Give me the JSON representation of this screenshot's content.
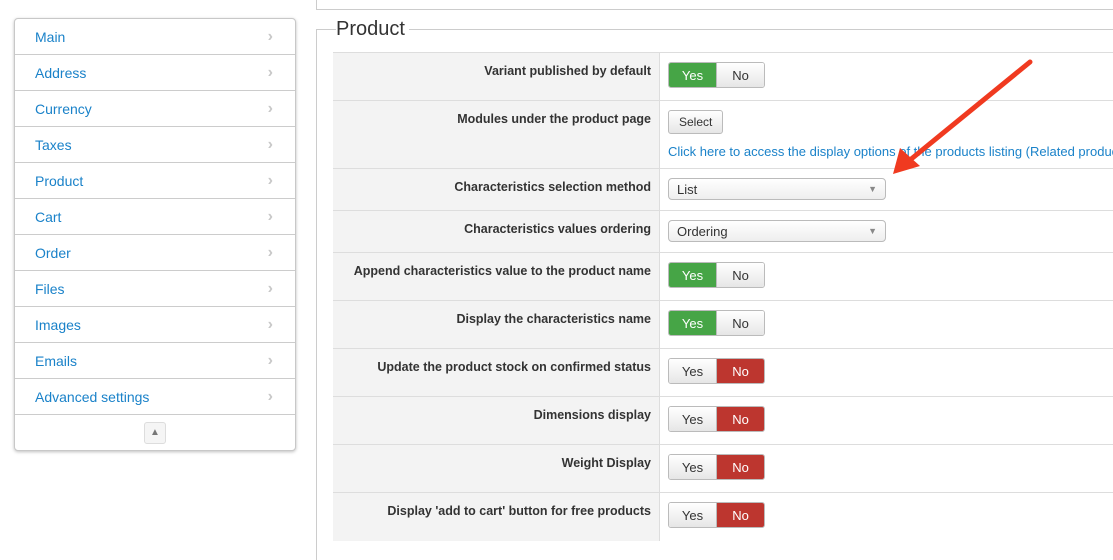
{
  "sidebar": {
    "items": [
      {
        "label": "Main"
      },
      {
        "label": "Address"
      },
      {
        "label": "Currency"
      },
      {
        "label": "Taxes"
      },
      {
        "label": "Product"
      },
      {
        "label": "Cart"
      },
      {
        "label": "Order"
      },
      {
        "label": "Files"
      },
      {
        "label": "Images"
      },
      {
        "label": "Emails"
      },
      {
        "label": "Advanced settings"
      }
    ]
  },
  "section": {
    "title": "Product"
  },
  "toggle": {
    "yes": "Yes",
    "no": "No"
  },
  "rows": [
    {
      "label": "Variant published by default",
      "value": "Yes"
    },
    {
      "label": "Modules under the product page",
      "button": "Select",
      "link": "Click here to access the display options of the products listing (Related products)"
    },
    {
      "label": "Characteristics selection method",
      "select": "List"
    },
    {
      "label": "Characteristics values ordering",
      "select": "Ordering"
    },
    {
      "label": "Append characteristics value to the product name",
      "value": "Yes"
    },
    {
      "label": "Display the characteristics name",
      "value": "Yes"
    },
    {
      "label": "Update the product stock on confirmed status",
      "value": "No"
    },
    {
      "label": "Dimensions display",
      "value": "No"
    },
    {
      "label": "Weight Display",
      "value": "No"
    },
    {
      "label": "Display 'add to cart' button for free products",
      "value": "No"
    }
  ],
  "colors": {
    "yes": "#46a546",
    "no": "#bd362f",
    "link": "#1a82c9",
    "arrow": "#f03a20"
  }
}
